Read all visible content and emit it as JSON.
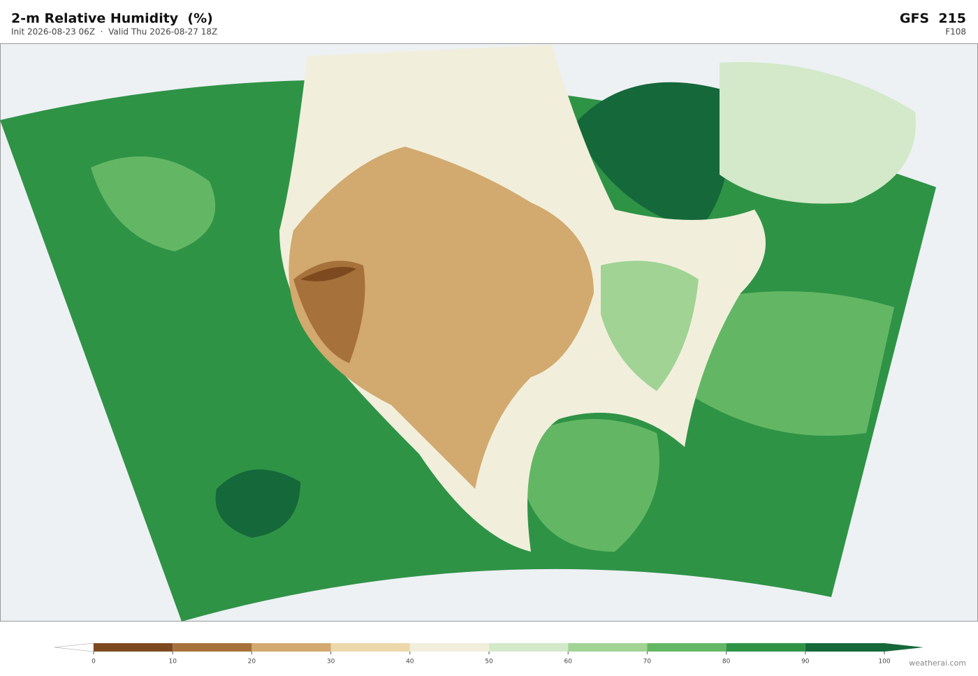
{
  "header": {
    "title": "2-m Relative Humidity  (%)",
    "subtitle": "Init 2026-08-23 06Z  ·  Valid Thu 2026-08-27 18Z",
    "model": "GFS  215",
    "forecast_hour": "F108"
  },
  "colorbar": {
    "ticks": [
      0,
      10,
      20,
      30,
      40,
      50,
      60,
      70,
      80,
      90,
      100
    ],
    "colors": [
      "#7d4a1f",
      "#a7713c",
      "#d2a96e",
      "#ecd8aa",
      "#f1efdc",
      "#d3e9c9",
      "#a1d394",
      "#63b764",
      "#2f9346",
      "#15683a"
    ]
  },
  "watermark": "weatherai.com"
}
